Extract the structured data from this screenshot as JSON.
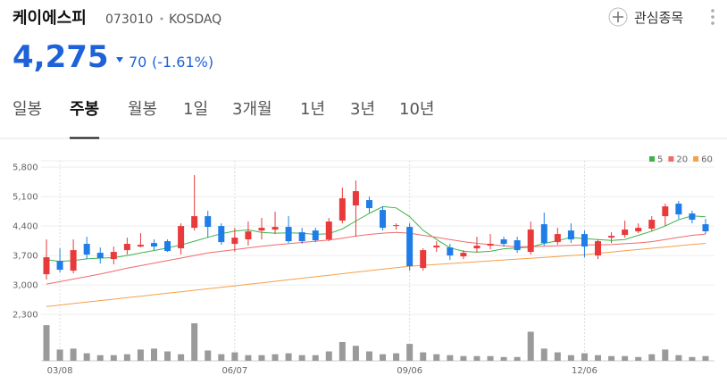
{
  "header": {
    "name": "케이에스피",
    "code": "073010",
    "market": "KOSDAQ",
    "price": "4,275",
    "change": "70",
    "change_rate": "(-1.61%)",
    "watch_button": "관심종목"
  },
  "tabs": {
    "items": [
      "일봉",
      "주봉",
      "월봉",
      "1일",
      "3개월",
      "1년",
      "3년",
      "10년"
    ],
    "active": 1
  },
  "chart_data": {
    "type": "candlestick",
    "categories": [
      null,
      "03/08",
      null,
      null,
      null,
      null,
      null,
      null,
      null,
      null,
      null,
      null,
      null,
      null,
      "06/07",
      null,
      null,
      null,
      null,
      null,
      null,
      null,
      null,
      null,
      null,
      null,
      null,
      "09/06",
      null,
      null,
      null,
      null,
      null,
      null,
      null,
      null,
      null,
      null,
      null,
      null,
      "12/06",
      null,
      null,
      null,
      null,
      null,
      null,
      null,
      null,
      null
    ],
    "open": [
      3256,
      3574,
      3341,
      3977,
      3765,
      3616,
      3828,
      3913,
      3997,
      4040,
      3871,
      4358,
      4634,
      4400,
      3977,
      4083,
      4294,
      4315,
      4379,
      4252,
      4294,
      4083,
      4528,
      4888,
      5016,
      4782,
      4400,
      4379,
      3404,
      3892,
      3892,
      3680,
      3870,
      3934,
      4083,
      4062,
      3786,
      4443,
      4019,
      4294,
      4210,
      3701,
      4125,
      4189,
      4273,
      4337,
      4634,
      4931,
      4698,
      4443
    ],
    "high": [
      4083,
      3871,
      4083,
      4146,
      3892,
      3913,
      4125,
      4231,
      4083,
      4083,
      4464,
      5609,
      4761,
      4464,
      4358,
      4507,
      4592,
      4740,
      4634,
      4358,
      4358,
      4592,
      5312,
      5482,
      5100,
      4867,
      4464,
      4464,
      3871,
      4040,
      3977,
      3828,
      4146,
      4210,
      4146,
      4146,
      4507,
      4719,
      4358,
      4464,
      4294,
      4083,
      4252,
      4528,
      4464,
      4634,
      4931,
      4994,
      4761,
      4570
    ],
    "low": [
      3129,
      3298,
      3277,
      3616,
      3510,
      3489,
      3722,
      3892,
      3828,
      3786,
      3722,
      4294,
      4125,
      3955,
      3786,
      3934,
      4083,
      4210,
      3997,
      3977,
      4019,
      4040,
      4464,
      4146,
      4719,
      4294,
      4316,
      3341,
      3341,
      3786,
      3595,
      3616,
      3765,
      3850,
      3913,
      3765,
      3722,
      3934,
      3955,
      3997,
      3659,
      3616,
      3997,
      4125,
      4231,
      4273,
      4400,
      4570,
      4464,
      4210
    ],
    "close": [
      3659,
      3362,
      3828,
      3722,
      3637,
      3786,
      3977,
      3955,
      3913,
      3807,
      4400,
      4634,
      4379,
      4019,
      4125,
      4273,
      4358,
      4379,
      4040,
      4040,
      4062,
      4507,
      5058,
      5228,
      4825,
      4358,
      4421,
      3447,
      3828,
      3934,
      3701,
      3765,
      3934,
      3977,
      3977,
      3828,
      4316,
      3997,
      4210,
      4083,
      3913,
      4040,
      4167,
      4316,
      4358,
      4549,
      4867,
      4676,
      4549,
      4275
    ],
    "up_color": "#e8393b",
    "down_color": "#1e7de6",
    "moving_averages": [
      {
        "name": "5",
        "color": "#3cb44b",
        "values": [
          3600,
          3560,
          3580,
          3620,
          3640,
          3650,
          3700,
          3760,
          3820,
          3880,
          3950,
          4040,
          4130,
          4220,
          4280,
          4310,
          4250,
          4230,
          4240,
          4230,
          4200,
          4220,
          4330,
          4520,
          4700,
          4860,
          4830,
          4620,
          4300,
          4080,
          3880,
          3800,
          3780,
          3800,
          3860,
          3880,
          3900,
          3990,
          4050,
          4130,
          4100,
          4080,
          4060,
          4080,
          4180,
          4280,
          4400,
          4550,
          4640,
          4620
        ]
      },
      {
        "name": "20",
        "color": "#f06a6a",
        "values": [
          3022,
          3080,
          3140,
          3200,
          3260,
          3330,
          3400,
          3460,
          3520,
          3580,
          3640,
          3700,
          3760,
          3800,
          3840,
          3880,
          3920,
          3950,
          3980,
          4010,
          4040,
          4070,
          4110,
          4160,
          4200,
          4230,
          4250,
          4230,
          4180,
          4130,
          4080,
          4030,
          3990,
          3960,
          3930,
          3910,
          3910,
          3920,
          3930,
          3940,
          3950,
          3950,
          3960,
          3980,
          4000,
          4030,
          4080,
          4130,
          4180,
          4210
        ]
      },
      {
        "name": "60",
        "color": "#f5a04a",
        "values": [
          2490,
          2525,
          2560,
          2595,
          2630,
          2665,
          2700,
          2735,
          2770,
          2805,
          2840,
          2875,
          2910,
          2945,
          2980,
          3016,
          3052,
          3088,
          3124,
          3160,
          3196,
          3232,
          3268,
          3304,
          3340,
          3376,
          3412,
          3447,
          3468,
          3489,
          3510,
          3531,
          3552,
          3573,
          3594,
          3615,
          3636,
          3657,
          3678,
          3699,
          3722,
          3752,
          3782,
          3812,
          3842,
          3872,
          3902,
          3932,
          3962,
          3990
        ]
      }
    ],
    "volume": {
      "color": "#9a9a9a",
      "values": [
        38,
        12,
        13,
        8,
        6,
        6,
        7,
        12,
        13,
        10,
        7,
        40,
        11,
        7,
        9,
        6,
        6,
        7,
        8,
        6,
        6,
        10,
        20,
        16,
        10,
        7,
        8,
        18,
        9,
        7,
        6,
        5,
        5,
        5,
        4,
        4,
        31,
        13,
        9,
        6,
        8,
        6,
        5,
        5,
        4,
        7,
        12,
        6,
        4,
        5
      ]
    },
    "ylim": [
      2240,
      5950
    ],
    "yticks": [
      {
        "value": 5800,
        "label": "5,800"
      },
      {
        "value": 5100,
        "label": "5,100"
      },
      {
        "value": 4400,
        "label": "4,400"
      },
      {
        "value": 3700,
        "label": "3,700"
      },
      {
        "value": 3000,
        "label": "3,000"
      },
      {
        "value": 2300,
        "label": "2,300"
      }
    ],
    "grid": true
  }
}
